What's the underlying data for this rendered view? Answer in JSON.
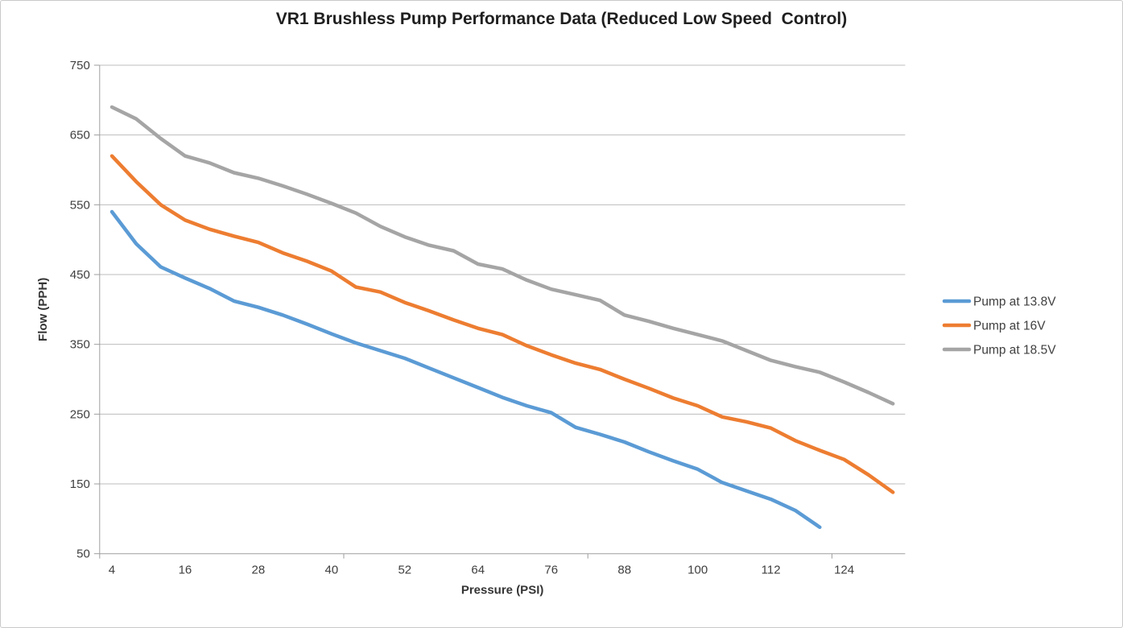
{
  "chart_data": {
    "type": "line",
    "title": "VR1 Brushless Pump Performance Data (Reduced Low Speed  Control)",
    "xlabel": "Pressure (PSI)",
    "ylabel": "Flow (PPH)",
    "categories": [
      4,
      8,
      12,
      16,
      20,
      24,
      28,
      32,
      36,
      40,
      44,
      48,
      52,
      56,
      60,
      64,
      68,
      72,
      76,
      80,
      84,
      88,
      92,
      96,
      100,
      104,
      108,
      112,
      116,
      120,
      124,
      128,
      132
    ],
    "x_tick_labels": [
      4,
      16,
      28,
      40,
      52,
      64,
      76,
      88,
      100,
      112,
      124
    ],
    "ylim": [
      50,
      750
    ],
    "y_ticks": [
      50,
      150,
      250,
      350,
      450,
      550,
      650,
      750
    ],
    "grid": "horizontal-only",
    "legend_position": "right",
    "series": [
      {
        "name": "Pump at 13.8V",
        "color": "#5B9BD5",
        "values": [
          540,
          494,
          461,
          445,
          430,
          412,
          403,
          392,
          379,
          365,
          352,
          341,
          330,
          316,
          302,
          288,
          274,
          262,
          252,
          231,
          221,
          210,
          196,
          183,
          171,
          152,
          140,
          128,
          112,
          88
        ]
      },
      {
        "name": "Pump at 16V",
        "color": "#ED7D31",
        "values": [
          620,
          583,
          550,
          528,
          515,
          505,
          496,
          481,
          469,
          455,
          432,
          425,
          410,
          398,
          385,
          373,
          364,
          348,
          335,
          323,
          314,
          300,
          287,
          273,
          262,
          246,
          239,
          230,
          212,
          198,
          185,
          163,
          138
        ]
      },
      {
        "name": "Pump at 18.5V",
        "color": "#A5A5A5",
        "values": [
          690,
          673,
          645,
          620,
          610,
          596,
          588,
          577,
          565,
          552,
          538,
          519,
          504,
          492,
          484,
          465,
          458,
          442,
          429,
          421,
          413,
          392,
          383,
          373,
          364,
          355,
          341,
          327,
          318,
          310,
          296,
          281,
          265
        ]
      }
    ]
  },
  "style": {
    "gridline_color": "#BDBDBD",
    "axis_color": "#9E9E9E",
    "line_width": 4.5
  }
}
